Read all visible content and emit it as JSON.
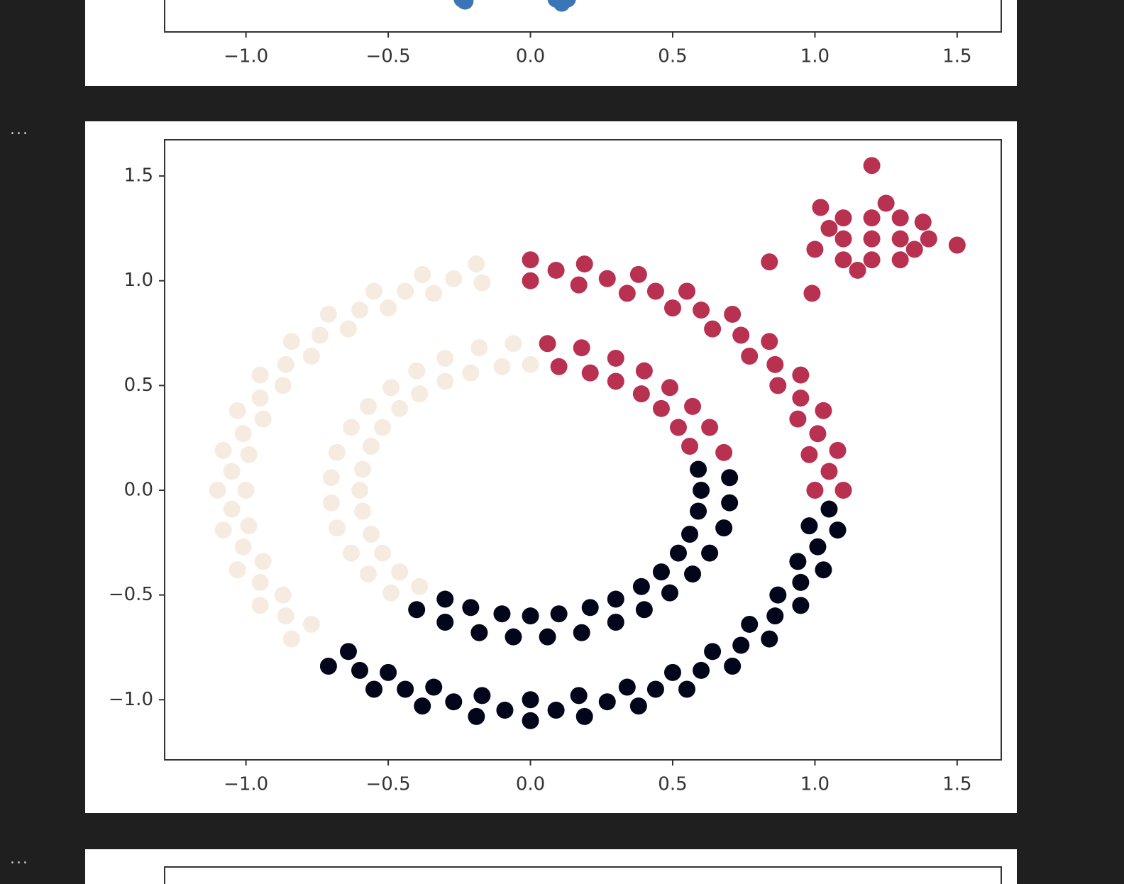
{
  "prompts": [
    "...",
    "..."
  ],
  "chart_data": [
    {
      "type": "scatter",
      "xlim": [
        -1.286,
        1.655
      ],
      "ylim": [
        -1.287,
        1.673
      ],
      "xticks": [
        {
          "value": -1,
          "label": "−1.0"
        },
        {
          "value": -0.5,
          "label": "−0.5"
        },
        {
          "value": 0,
          "label": "0.0"
        },
        0.5,
        {
          "value": 1,
          "label": "1.0"
        },
        1.5
      ],
      "series": [
        {
          "color": "#3a76b5",
          "x": [
            -0.24,
            -0.23,
            0.09,
            0.11,
            0.13
          ],
          "y": [
            -1.13,
            -1.14,
            -1.13,
            -1.15,
            -1.13
          ]
        }
      ]
    },
    {
      "type": "scatter",
      "xlim": [
        -1.286,
        1.655
      ],
      "ylim": [
        -1.287,
        1.673
      ],
      "xticks": [
        {
          "value": -1,
          "label": "−1.0"
        },
        {
          "value": -0.5,
          "label": "−0.5"
        },
        {
          "value": 0,
          "label": "0.0"
        },
        0.5,
        {
          "value": 1,
          "label": "1.0"
        },
        1.5
      ],
      "yticks": [
        {
          "value": -1,
          "label": "−1.0"
        },
        {
          "value": -0.5,
          "label": "−0.5"
        },
        {
          "value": 0,
          "label": "0.0"
        },
        0.5,
        {
          "value": 1,
          "label": "1.0"
        },
        1.5
      ],
      "series": [
        {
          "color": "#f6ebe0",
          "x": [
            -0.17,
            -0.34,
            -0.5,
            -0.64,
            -0.77,
            -0.87,
            -0.94,
            -0.99,
            -1,
            -0.99,
            -0.94,
            -0.87,
            -0.77,
            -0.19,
            -0.38,
            -0.55,
            -0.71,
            -0.84,
            -0.95,
            -1.03,
            -1.08,
            -1.1,
            -1.08,
            -1.03,
            -0.95,
            -0.84,
            -0.27,
            -0.44,
            -0.6,
            -0.74,
            -0.86,
            -0.95,
            -1.01,
            -1.05,
            -1.05,
            -1.01,
            -0.95,
            -0.86,
            0,
            -0.1,
            -0.21,
            -0.3,
            -0.39,
            -0.46,
            -0.52,
            -0.56,
            -0.59,
            -0.6,
            -0.59,
            -0.56,
            -0.52,
            -0.46,
            -0.39,
            -0.06,
            -0.18,
            -0.3,
            -0.4,
            -0.49,
            -0.57,
            -0.63,
            -0.68,
            -0.7,
            -0.7,
            -0.68,
            -0.63,
            -0.57,
            -0.49
          ],
          "y": [
            0.99,
            0.94,
            0.87,
            0.77,
            0.64,
            0.5,
            0.34,
            0.17,
            0,
            -0.17,
            -0.34,
            -0.5,
            -0.64,
            1.08,
            1.03,
            0.95,
            0.84,
            0.71,
            0.55,
            0.38,
            0.19,
            0,
            -0.19,
            -0.38,
            -0.55,
            -0.71,
            1.01,
            0.95,
            0.86,
            0.74,
            0.6,
            0.44,
            0.27,
            0.09,
            -0.09,
            -0.27,
            -0.44,
            -0.6,
            0.6,
            0.59,
            0.56,
            0.52,
            0.46,
            0.39,
            0.3,
            0.21,
            0.1,
            0,
            -0.1,
            -0.21,
            -0.3,
            -0.39,
            -0.46,
            0.7,
            0.68,
            0.63,
            0.57,
            0.49,
            0.4,
            0.3,
            0.18,
            0.06,
            -0.06,
            -0.18,
            -0.3,
            -0.4,
            -0.49
          ]
        },
        {
          "color": "#b83151",
          "x": [
            1,
            0.98,
            0.94,
            0.87,
            0.77,
            0.64,
            0.5,
            0.34,
            0.17,
            0,
            1.1,
            1.08,
            1.03,
            0.95,
            0.84,
            0.71,
            0.55,
            0.38,
            0.19,
            0,
            1.05,
            1.01,
            0.95,
            0.86,
            0.74,
            0.6,
            0.44,
            0.27,
            0.09,
            0.56,
            0.52,
            0.46,
            0.39,
            0.3,
            0.21,
            0.1,
            0.68,
            0.63,
            0.57,
            0.49,
            0.4,
            0.3,
            0.18,
            0.06,
            1.2,
            1.1,
            1.3,
            1.2,
            1.2,
            1.05,
            1.35,
            1.1,
            1.3,
            1.1,
            1.3,
            1.25,
            1.15,
            1.4,
            1.0,
            1.2,
            0.84,
            1.5,
            0.99,
            1.38,
            1.02
          ],
          "y": [
            0,
            0.17,
            0.34,
            0.5,
            0.64,
            0.77,
            0.87,
            0.94,
            0.98,
            1,
            0,
            0.19,
            0.38,
            0.55,
            0.71,
            0.84,
            0.95,
            1.03,
            1.08,
            1.1,
            0.09,
            0.27,
            0.44,
            0.6,
            0.74,
            0.86,
            0.95,
            1.01,
            1.05,
            0.21,
            0.3,
            0.39,
            0.46,
            0.52,
            0.56,
            0.59,
            0.18,
            0.3,
            0.4,
            0.49,
            0.57,
            0.63,
            0.68,
            0.7,
            1.2,
            1.2,
            1.2,
            1.3,
            1.1,
            1.25,
            1.15,
            1.1,
            1.3,
            1.3,
            1.1,
            1.37,
            1.05,
            1.2,
            1.15,
            1.55,
            1.09,
            1.17,
            0.94,
            1.28,
            1.35
          ]
        },
        {
          "color": "#03051a",
          "x": [
            -0.64,
            -0.5,
            -0.34,
            -0.17,
            0,
            0.17,
            0.34,
            0.5,
            0.64,
            0.77,
            0.87,
            0.94,
            0.98,
            -0.71,
            -0.55,
            -0.38,
            -0.19,
            0,
            0.19,
            0.38,
            0.55,
            0.71,
            0.84,
            0.95,
            1.03,
            1.08,
            -0.6,
            -0.44,
            -0.27,
            -0.09,
            0.09,
            0.27,
            0.44,
            0.6,
            0.74,
            0.86,
            0.95,
            1.01,
            1.05,
            -0.3,
            -0.21,
            -0.1,
            0,
            0.1,
            0.21,
            0.3,
            0.39,
            0.46,
            0.52,
            0.56,
            0.59,
            0.6,
            0.59,
            -0.4,
            -0.3,
            -0.18,
            -0.06,
            0.06,
            0.18,
            0.3,
            0.4,
            0.49,
            0.57,
            0.63,
            0.68,
            0.7,
            0.7
          ],
          "y": [
            -0.77,
            -0.87,
            -0.94,
            -0.98,
            -1,
            -0.98,
            -0.94,
            -0.87,
            -0.77,
            -0.64,
            -0.5,
            -0.34,
            -0.17,
            -0.84,
            -0.95,
            -1.03,
            -1.08,
            -1.1,
            -1.08,
            -1.03,
            -0.95,
            -0.84,
            -0.71,
            -0.55,
            -0.38,
            -0.19,
            -0.86,
            -0.95,
            -1.01,
            -1.05,
            -1.05,
            -1.01,
            -0.95,
            -0.86,
            -0.74,
            -0.6,
            -0.44,
            -0.27,
            -0.09,
            -0.52,
            -0.56,
            -0.59,
            -0.6,
            -0.59,
            -0.56,
            -0.52,
            -0.46,
            -0.39,
            -0.3,
            -0.21,
            -0.1,
            0,
            0.1,
            -0.57,
            -0.63,
            -0.68,
            -0.7,
            -0.7,
            -0.68,
            -0.63,
            -0.57,
            -0.49,
            -0.4,
            -0.3,
            -0.18,
            -0.06,
            0.06
          ]
        }
      ]
    }
  ]
}
